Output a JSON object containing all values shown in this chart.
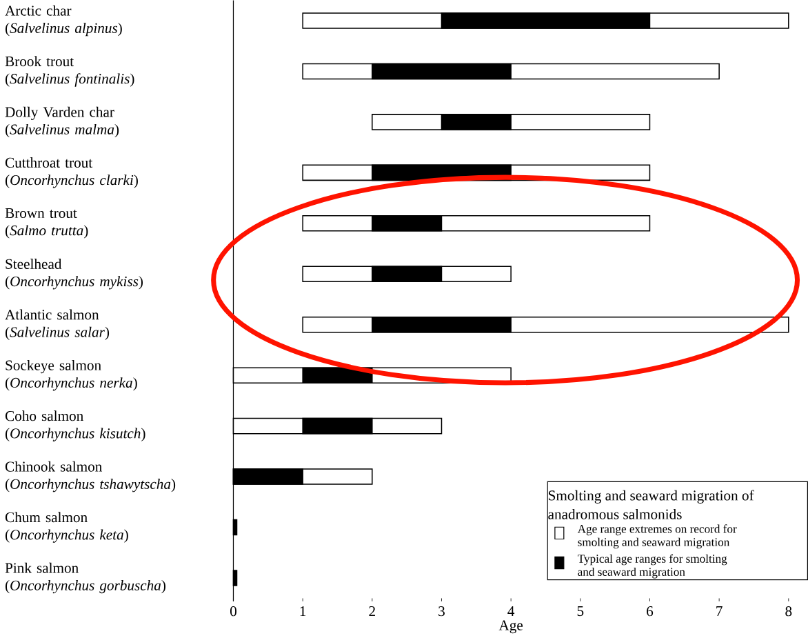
{
  "chart_data": {
    "type": "bar",
    "orientation": "horizontal",
    "legend_title": "Smolting and seaward migration of anadromous salmonids",
    "xlabel": "Age",
    "categories": [
      "Arctic char\n(*Salvelinus alpinus*)",
      "Brook trout\n(*Salvelinus fontinalis*)",
      "Dolly Varden char\n(*Salvelinus malma*)",
      "Cutthroat trout\n(*Oncorhynchus clarki*)",
      "Brown trout\n(*Salmo trutta*)",
      "Steelhead\n(*Oncorhynchus mykiss*)",
      "Atlantic salmon\n(*Salvelinus salar*)",
      "Sockeye salmon\n(*Oncorhynchus nerka*)",
      "Coho salmon\n(*Oncorhynchus kisutch*)",
      "Chinook salmon\n(*Oncorhynchus tshawytscha*)",
      "Chum salmon\n(*Oncorhynchus keta*)",
      "Pink salmon\n(*Oncorhynchus gorbuscha*)"
    ],
    "series": [
      {
        "name": "Age range extremes on record for smolting and seaward migration",
        "color": "#ffffff",
        "base": [
          1,
          1,
          2,
          1,
          1,
          1,
          1,
          0,
          0,
          0,
          null,
          null
        ],
        "values": [
          7,
          6,
          4,
          5,
          5,
          3,
          7,
          4,
          3,
          2,
          null,
          null
        ]
      },
      {
        "name": "Typical age ranges for smolting and seaward migration",
        "color": "#000000",
        "base": [
          3,
          2,
          3,
          2,
          2,
          2,
          2,
          1,
          1,
          0,
          0,
          0
        ],
        "values": [
          3,
          2,
          1,
          2,
          1,
          1,
          2,
          1,
          1,
          1,
          0.05,
          0.05
        ]
      }
    ],
    "xlim": [
      0,
      8
    ],
    "xticks": [
      0,
      1,
      2,
      3,
      4,
      5,
      6,
      7,
      8
    ],
    "legend": "bottom right"
  }
}
